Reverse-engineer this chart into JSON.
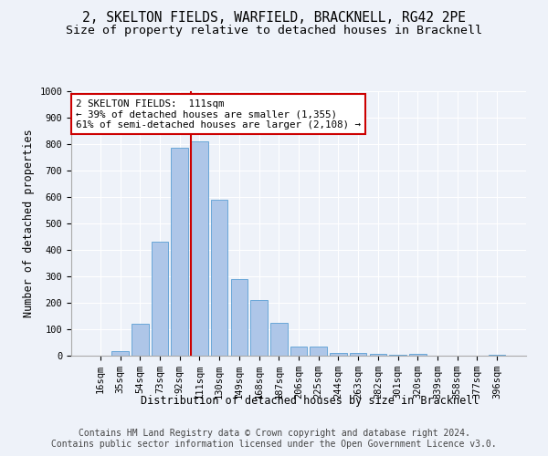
{
  "title_line1": "2, SKELTON FIELDS, WARFIELD, BRACKNELL, RG42 2PE",
  "title_line2": "Size of property relative to detached houses in Bracknell",
  "xlabel": "Distribution of detached houses by size in Bracknell",
  "ylabel": "Number of detached properties",
  "bar_labels": [
    "16sqm",
    "35sqm",
    "54sqm",
    "73sqm",
    "92sqm",
    "111sqm",
    "130sqm",
    "149sqm",
    "168sqm",
    "187sqm",
    "206sqm",
    "225sqm",
    "244sqm",
    "263sqm",
    "282sqm",
    "301sqm",
    "320sqm",
    "339sqm",
    "358sqm",
    "377sqm",
    "396sqm"
  ],
  "bar_values": [
    0,
    18,
    120,
    430,
    785,
    810,
    590,
    290,
    210,
    125,
    35,
    35,
    12,
    10,
    8,
    5,
    8,
    0,
    0,
    0,
    5
  ],
  "bar_color": "#aec6e8",
  "bar_edge_color": "#5a9fd4",
  "vline_index": 5,
  "vline_color": "#cc0000",
  "annotation_text": "2 SKELTON FIELDS:  111sqm\n← 39% of detached houses are smaller (1,355)\n61% of semi-detached houses are larger (2,108) →",
  "annotation_box_facecolor": "#ffffff",
  "annotation_box_edgecolor": "#cc0000",
  "ylim": [
    0,
    1000
  ],
  "yticks": [
    0,
    100,
    200,
    300,
    400,
    500,
    600,
    700,
    800,
    900,
    1000
  ],
  "footer_line1": "Contains HM Land Registry data © Crown copyright and database right 2024.",
  "footer_line2": "Contains public sector information licensed under the Open Government Licence v3.0.",
  "background_color": "#eef2f9",
  "plot_background_color": "#eef2f9",
  "grid_color": "#ffffff",
  "title1_fontsize": 10.5,
  "title2_fontsize": 9.5,
  "axis_label_fontsize": 8.5,
  "tick_fontsize": 7.5,
  "annotation_fontsize": 7.8,
  "footer_fontsize": 7.0
}
